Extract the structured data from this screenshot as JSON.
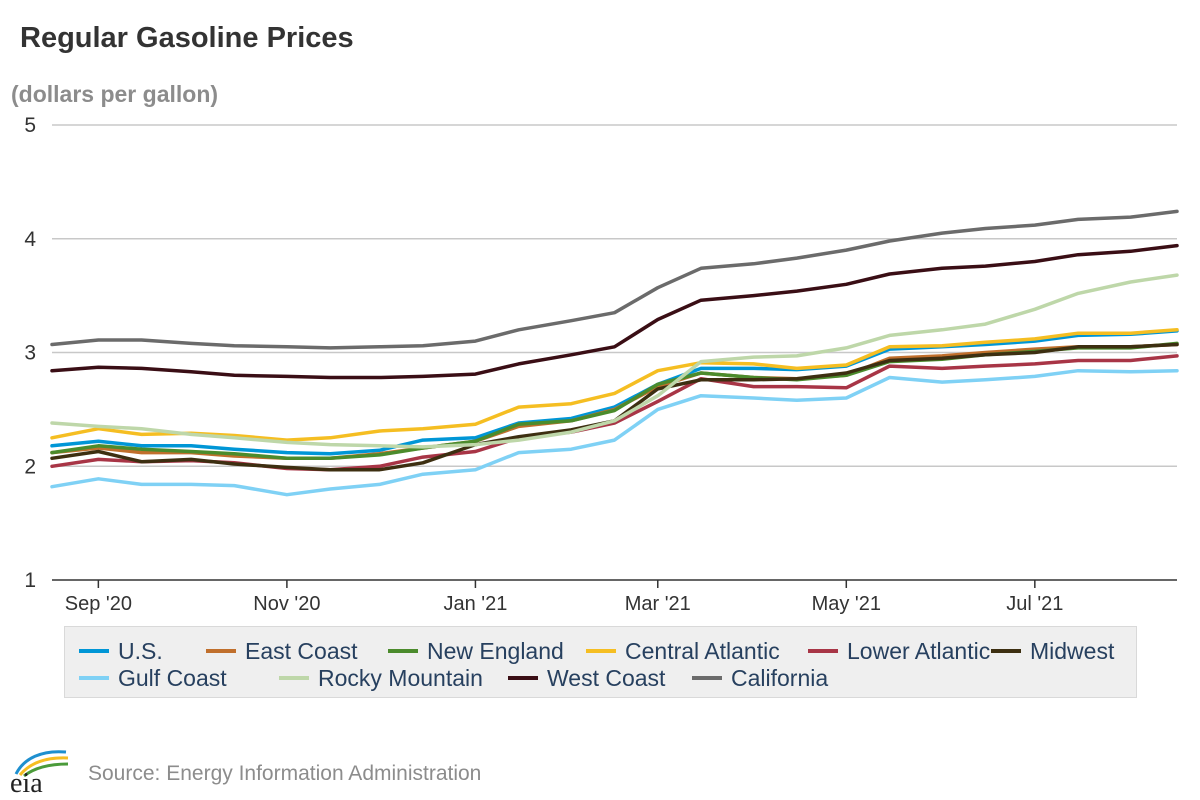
{
  "title": "Regular Gasoline Prices",
  "subtitle": "(dollars per gallon)",
  "source": "Source: Energy Information Administration",
  "logo_text": "eia",
  "chart_data": {
    "type": "line",
    "title": "Regular Gasoline Prices",
    "ylabel": "(dollars per gallon)",
    "ylim": [
      1,
      5
    ],
    "yticks": [
      "1",
      "2",
      "3",
      "4",
      "5"
    ],
    "grid": true,
    "legend_position": "bottom",
    "xlim": [
      "2020-08-17",
      "2021-08-16"
    ],
    "xticks": [
      {
        "label": "Sep '20",
        "date": "2020-09-01"
      },
      {
        "label": "Nov '20",
        "date": "2020-11-01"
      },
      {
        "label": "Jan '21",
        "date": "2021-01-01"
      },
      {
        "label": "Mar '21",
        "date": "2021-03-01"
      },
      {
        "label": "May '21",
        "date": "2021-05-01"
      },
      {
        "label": "Jul '21",
        "date": "2021-07-01"
      }
    ],
    "x": [
      "2020-08-17",
      "2020-09-01",
      "2020-09-15",
      "2020-10-01",
      "2020-10-15",
      "2020-11-01",
      "2020-11-15",
      "2020-12-01",
      "2020-12-15",
      "2021-01-01",
      "2021-01-15",
      "2021-02-01",
      "2021-02-15",
      "2021-03-01",
      "2021-03-15",
      "2021-04-01",
      "2021-04-15",
      "2021-05-01",
      "2021-05-15",
      "2021-06-01",
      "2021-06-15",
      "2021-07-01",
      "2021-07-15",
      "2021-08-01",
      "2021-08-16"
    ],
    "series": [
      {
        "name": "U.S.",
        "color": "#0096d6",
        "values": [
          2.18,
          2.22,
          2.18,
          2.18,
          2.15,
          2.12,
          2.11,
          2.14,
          2.23,
          2.25,
          2.38,
          2.42,
          2.52,
          2.72,
          2.86,
          2.86,
          2.85,
          2.88,
          3.03,
          3.05,
          3.07,
          3.1,
          3.15,
          3.16,
          3.19
        ]
      },
      {
        "name": "East Coast",
        "color": "#c06f2c",
        "values": [
          2.12,
          2.16,
          2.12,
          2.12,
          2.09,
          2.07,
          2.07,
          2.11,
          2.16,
          2.22,
          2.35,
          2.4,
          2.5,
          2.7,
          2.82,
          2.78,
          2.77,
          2.8,
          2.95,
          2.97,
          3.0,
          3.03,
          3.05,
          3.05,
          3.07
        ]
      },
      {
        "name": "New England",
        "color": "#4b8b2c",
        "values": [
          2.12,
          2.18,
          2.15,
          2.13,
          2.11,
          2.07,
          2.07,
          2.1,
          2.16,
          2.22,
          2.37,
          2.4,
          2.49,
          2.72,
          2.82,
          2.78,
          2.76,
          2.8,
          2.92,
          2.94,
          2.98,
          3.01,
          3.04,
          3.04,
          3.08
        ]
      },
      {
        "name": "Central Atlantic",
        "color": "#f5be22",
        "values": [
          2.25,
          2.33,
          2.28,
          2.29,
          2.27,
          2.23,
          2.25,
          2.31,
          2.33,
          2.37,
          2.52,
          2.55,
          2.64,
          2.84,
          2.91,
          2.9,
          2.86,
          2.89,
          3.05,
          3.06,
          3.09,
          3.12,
          3.17,
          3.17,
          3.2
        ]
      },
      {
        "name": "Lower Atlantic",
        "color": "#a83546",
        "values": [
          2.0,
          2.06,
          2.04,
          2.05,
          2.03,
          1.98,
          1.97,
          2.0,
          2.08,
          2.13,
          2.25,
          2.3,
          2.38,
          2.57,
          2.77,
          2.7,
          2.7,
          2.69,
          2.88,
          2.86,
          2.88,
          2.9,
          2.93,
          2.93,
          2.97
        ]
      },
      {
        "name": "Midwest",
        "color": "#3d2f11",
        "values": [
          2.07,
          2.13,
          2.04,
          2.06,
          2.02,
          1.99,
          1.97,
          1.97,
          2.03,
          2.19,
          2.26,
          2.32,
          2.4,
          2.68,
          2.76,
          2.76,
          2.77,
          2.82,
          2.93,
          2.95,
          2.98,
          3.0,
          3.05,
          3.05,
          3.07
        ]
      },
      {
        "name": "Gulf Coast",
        "color": "#7fd1f5",
        "values": [
          1.82,
          1.89,
          1.84,
          1.84,
          1.83,
          1.75,
          1.8,
          1.84,
          1.93,
          1.97,
          2.12,
          2.15,
          2.23,
          2.5,
          2.62,
          2.6,
          2.58,
          2.6,
          2.78,
          2.74,
          2.76,
          2.79,
          2.84,
          2.83,
          2.84
        ]
      },
      {
        "name": "Rocky Mountain",
        "color": "#bed7a9",
        "values": [
          2.38,
          2.35,
          2.33,
          2.28,
          2.25,
          2.21,
          2.19,
          2.18,
          2.17,
          2.19,
          2.23,
          2.3,
          2.4,
          2.62,
          2.92,
          2.96,
          2.97,
          3.04,
          3.15,
          3.2,
          3.25,
          3.38,
          3.52,
          3.62,
          3.68
        ]
      },
      {
        "name": "West Coast",
        "color": "#3a0e15",
        "values": [
          2.84,
          2.87,
          2.86,
          2.83,
          2.8,
          2.79,
          2.78,
          2.78,
          2.79,
          2.81,
          2.9,
          2.98,
          3.05,
          3.29,
          3.46,
          3.5,
          3.54,
          3.6,
          3.69,
          3.74,
          3.76,
          3.8,
          3.86,
          3.89,
          3.94
        ]
      },
      {
        "name": "California",
        "color": "#6b6b6b",
        "values": [
          3.07,
          3.11,
          3.11,
          3.08,
          3.06,
          3.05,
          3.04,
          3.05,
          3.06,
          3.1,
          3.2,
          3.28,
          3.35,
          3.57,
          3.74,
          3.78,
          3.83,
          3.9,
          3.98,
          4.05,
          4.09,
          4.12,
          4.17,
          4.19,
          4.24
        ]
      }
    ]
  }
}
